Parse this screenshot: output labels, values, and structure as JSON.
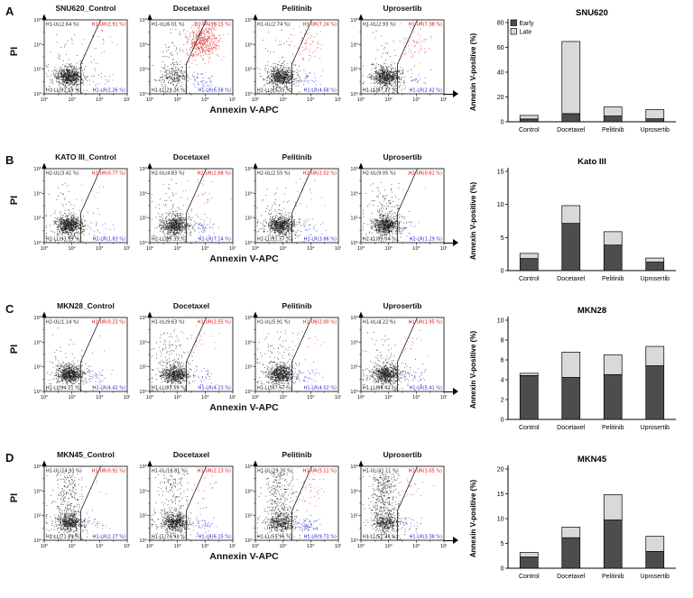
{
  "figure": {
    "x_axis_label": "Annexin V-APC",
    "y_axis_label": "PI",
    "legend": {
      "early": "Early",
      "late": "Late"
    },
    "scatter_x_ticks": [
      "10⁰",
      "10²",
      "10⁴",
      "10⁶"
    ],
    "scatter_y_ticks": [
      "10⁶",
      "10⁴",
      "10²",
      "10⁰"
    ],
    "colors": {
      "early_bar": "#4d4d4d",
      "late_bar": "#d9d9d9",
      "ur_text": "#e00000",
      "lr_text": "#1a1acc",
      "dot": "#1c1c1c",
      "dot_red": "#dd2a2a",
      "dot_blue": "#3344cc"
    }
  },
  "rows": [
    {
      "panel": "A",
      "plots": [
        {
          "title": "SNU620_Control",
          "ul_label": "H1-UL(2.64 %)",
          "ur_label": "H1-UR(2.91 %)",
          "ll_label": "H1-LL(92.19 %)",
          "lr_label": "H1-LR(2.26 %)",
          "pct": {
            "ul": 2.64,
            "ur": 2.91,
            "ll": 92.19,
            "lr": 2.26
          }
        },
        {
          "title": "Docetaxel",
          "ul_label": "H1-UL(6.01 %)",
          "ur_label": "H1-UR(58.15 %)",
          "ll_label": "H1-LL(29.26 %)",
          "lr_label": "H1-LR(6.58 %)",
          "pct": {
            "ul": 6.01,
            "ur": 58.15,
            "ll": 29.26,
            "lr": 6.58
          }
        },
        {
          "title": "Pelitinib",
          "ul_label": "H1-UL(2.74 %)",
          "ur_label": "H1-UR(7.24 %)",
          "ll_label": "H1-LL(85.35 %)",
          "lr_label": "H1-LR(4.68 %)",
          "pct": {
            "ul": 2.74,
            "ur": 7.24,
            "ll": 85.35,
            "lr": 4.68
          }
        },
        {
          "title": "Uprosertib",
          "ul_label": "H1-UL(2.93 %)",
          "ur_label": "H1-UR(7.38 %)",
          "ll_label": "H1-LL(87.27 %)",
          "lr_label": "H1-LR(2.42 %)",
          "pct": {
            "ul": 2.93,
            "ur": 7.38,
            "ll": 87.27,
            "lr": 2.42
          }
        }
      ],
      "chart": {
        "title": "SNU620",
        "ylabel": "Annexin V-positive (%)",
        "ylim": [
          0,
          80
        ],
        "yticks": [
          0,
          20,
          40,
          60,
          80
        ],
        "categories": [
          "Control",
          "Docetaxel",
          "Pelitinib",
          "Uprosertib"
        ],
        "early": [
          2.26,
          6.58,
          4.68,
          2.42
        ],
        "late": [
          2.91,
          58.15,
          7.24,
          7.38
        ],
        "show_legend": true
      }
    },
    {
      "panel": "B",
      "plots": [
        {
          "title": "KATO III_Control",
          "ul_label": "H2-UL(3.41 %)",
          "ur_label": "H2-UR(0.77 %)",
          "ll_label": "H2-LL(93.99 %)",
          "lr_label": "H2-LR(1.83 %)",
          "pct": {
            "ul": 3.41,
            "ur": 0.77,
            "ll": 93.99,
            "lr": 1.83
          }
        },
        {
          "title": "Docetaxel",
          "ul_label": "H2-UL(4.83 %)",
          "ur_label": "H2-UR(2.68 %)",
          "ll_label": "H2-LL(85.35 %)",
          "lr_label": "H2-LR(7.14 %)",
          "pct": {
            "ul": 4.83,
            "ur": 2.68,
            "ll": 85.35,
            "lr": 7.14
          }
        },
        {
          "title": "Pelitinib",
          "ul_label": "H2-UL(2.55 %)",
          "ur_label": "H2-UR(2.02 %)",
          "ll_label": "H2-LL(91.57 %)",
          "lr_label": "H2-LR(3.86 %)",
          "pct": {
            "ul": 2.55,
            "ur": 2.02,
            "ll": 91.57,
            "lr": 3.86
          }
        },
        {
          "title": "Uprosertib",
          "ul_label": "H2-UL(9.05 %)",
          "ur_label": "H2-UR(0.61 %)",
          "ll_label": "H2-LL(89.04 %)",
          "lr_label": "H2-LR(1.29 %)",
          "pct": {
            "ul": 9.05,
            "ur": 0.61,
            "ll": 89.04,
            "lr": 1.29
          }
        }
      ],
      "chart": {
        "title": "Kato III",
        "ylabel": "Annexin V-positive (%)",
        "ylim": [
          0,
          15
        ],
        "yticks": [
          0,
          5,
          10,
          15
        ],
        "categories": [
          "Control",
          "Docetaxel",
          "Pelitinib",
          "Uprosertib"
        ],
        "early": [
          1.83,
          7.14,
          3.86,
          1.29
        ],
        "late": [
          0.77,
          2.68,
          2.02,
          0.61
        ],
        "show_legend": false
      }
    },
    {
      "panel": "C",
      "plots": [
        {
          "title": "MKN28_Control",
          "ul_label": "H2-UL(1.14 %)",
          "ur_label": "H2-UR(0.23 %)",
          "ll_label": "H2-LL(94.21 %)",
          "lr_label": "H2-LR(4.42 %)",
          "pct": {
            "ul": 1.14,
            "ur": 0.23,
            "ll": 94.21,
            "lr": 4.42
          }
        },
        {
          "title": "Docetaxel",
          "ul_label": "H1-UL(9.63 %)",
          "ur_label": "H1-UR(2.55 %)",
          "ll_label": "H1-LL(83.59 %)",
          "lr_label": "H1-LR(4.23 %)",
          "pct": {
            "ul": 9.63,
            "ur": 2.55,
            "ll": 83.59,
            "lr": 4.23
          }
        },
        {
          "title": "Pelitinib",
          "ul_label": "H1-UL(5.91 %)",
          "ur_label": "H1-UR(2.00 %)",
          "ll_label": "H1-LL(87.57 %)",
          "lr_label": "H1-LR(4.52 %)",
          "pct": {
            "ul": 5.91,
            "ur": 2.0,
            "ll": 87.57,
            "lr": 4.52
          }
        },
        {
          "title": "Uprosertib",
          "ul_label": "H1-UL(4.22 %)",
          "ur_label": "H1-UR(1.95 %)",
          "ll_label": "H1-LL(88.42 %)",
          "lr_label": "H1-LR(5.41 %)",
          "pct": {
            "ul": 4.22,
            "ur": 1.95,
            "ll": 88.42,
            "lr": 5.41
          }
        }
      ],
      "chart": {
        "title": "MKN28",
        "ylabel": "Annexin V-positive (%)",
        "ylim": [
          0,
          10
        ],
        "yticks": [
          0,
          2,
          4,
          6,
          8,
          10
        ],
        "categories": [
          "Control",
          "Docetaxel",
          "Pelitinib",
          "Uprosertib"
        ],
        "early": [
          4.42,
          4.23,
          4.52,
          5.41
        ],
        "late": [
          0.23,
          2.55,
          2.0,
          1.95
        ],
        "show_legend": false
      }
    },
    {
      "panel": "D",
      "plots": [
        {
          "title": "MKN45_Control",
          "ul_label": "H1-UL(24.93 %)",
          "ur_label": "H1-UR(0.91 %)",
          "ll_label": "H1-LL(71.89 %)",
          "lr_label": "H1-LR(2.27 %)",
          "pct": {
            "ul": 24.93,
            "ur": 0.91,
            "ll": 71.89,
            "lr": 2.27
          }
        },
        {
          "title": "Docetaxel",
          "ul_label": "H1-UL(16.81 %)",
          "ur_label": "H1-UR(2.13 %)",
          "ll_label": "H1-LL(74.91 %)",
          "lr_label": "H1-LR(6.15 %)",
          "pct": {
            "ul": 16.81,
            "ur": 2.13,
            "ll": 74.91,
            "lr": 6.15
          }
        },
        {
          "title": "Pelitinib",
          "ul_label": "H1-UL(29.20 %)",
          "ur_label": "H1-UR(5.11 %)",
          "ll_label": "H1-LL(55.96 %)",
          "lr_label": "H1-LR(9.73 %)",
          "pct": {
            "ul": 29.2,
            "ur": 5.11,
            "ll": 55.96,
            "lr": 9.73
          }
        },
        {
          "title": "Uprosertib",
          "ul_label": "H1-UL(41.11 %)",
          "ur_label": "H1-UR(3.05 %)",
          "ll_label": "H1-LL(52.46 %)",
          "lr_label": "H1-LR(3.38 %)",
          "pct": {
            "ul": 41.11,
            "ur": 3.05,
            "ll": 52.46,
            "lr": 3.38
          }
        }
      ],
      "chart": {
        "title": "MKN45",
        "ylabel": "Annexin V-positive (%)",
        "ylim": [
          0,
          20
        ],
        "yticks": [
          0,
          5,
          10,
          15,
          20
        ],
        "categories": [
          "Control",
          "Docetaxel",
          "Pelitinib",
          "Uprosertib"
        ],
        "early": [
          2.27,
          6.15,
          9.73,
          3.38
        ],
        "late": [
          0.91,
          2.13,
          5.11,
          3.05
        ],
        "show_legend": false
      }
    }
  ],
  "chart_data": [
    {
      "type": "bar",
      "stacked": true,
      "title": "SNU620",
      "categories": [
        "Control",
        "Docetaxel",
        "Pelitinib",
        "Uprosertib"
      ],
      "series": [
        {
          "name": "Early",
          "values": [
            2.26,
            6.58,
            4.68,
            2.42
          ]
        },
        {
          "name": "Late",
          "values": [
            2.91,
            58.15,
            7.24,
            7.38
          ]
        }
      ],
      "xlabel": "",
      "ylabel": "Annexin V-positive (%)",
      "ylim": [
        0,
        80
      ],
      "legend_position": "upper-left"
    },
    {
      "type": "bar",
      "stacked": true,
      "title": "Kato III",
      "categories": [
        "Control",
        "Docetaxel",
        "Pelitinib",
        "Uprosertib"
      ],
      "series": [
        {
          "name": "Early",
          "values": [
            1.83,
            7.14,
            3.86,
            1.29
          ]
        },
        {
          "name": "Late",
          "values": [
            0.77,
            2.68,
            2.02,
            0.61
          ]
        }
      ],
      "xlabel": "",
      "ylabel": "Annexin V-positive (%)",
      "ylim": [
        0,
        15
      ]
    },
    {
      "type": "bar",
      "stacked": true,
      "title": "MKN28",
      "categories": [
        "Control",
        "Docetaxel",
        "Pelitinib",
        "Uprosertib"
      ],
      "series": [
        {
          "name": "Early",
          "values": [
            4.42,
            4.23,
            4.52,
            5.41
          ]
        },
        {
          "name": "Late",
          "values": [
            0.23,
            2.55,
            2.0,
            1.95
          ]
        }
      ],
      "xlabel": "",
      "ylabel": "Annexin V-positive (%)",
      "ylim": [
        0,
        10
      ]
    },
    {
      "type": "bar",
      "stacked": true,
      "title": "MKN45",
      "categories": [
        "Control",
        "Docetaxel",
        "Pelitinib",
        "Uprosertib"
      ],
      "series": [
        {
          "name": "Early",
          "values": [
            2.27,
            6.15,
            9.73,
            3.38
          ]
        },
        {
          "name": "Late",
          "values": [
            0.91,
            2.13,
            5.11,
            3.05
          ]
        }
      ],
      "xlabel": "",
      "ylabel": "Annexin V-positive (%)",
      "ylim": [
        0,
        20
      ]
    }
  ]
}
